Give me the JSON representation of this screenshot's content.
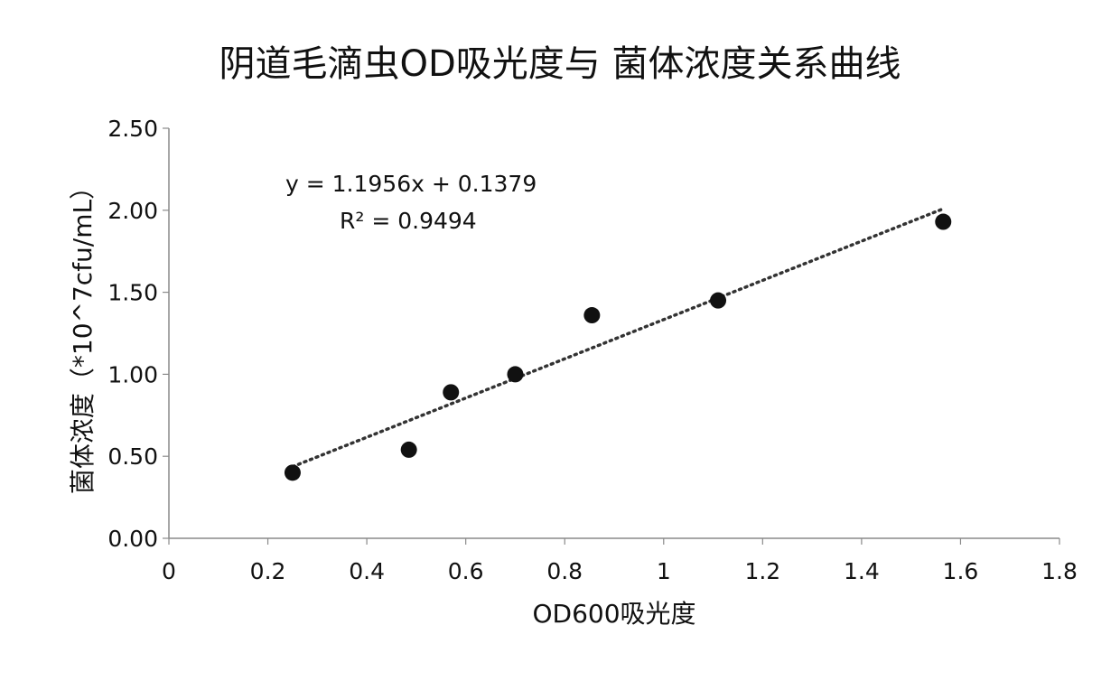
{
  "chart_data": {
    "type": "scatter",
    "title": "阴道毛滴虫OD吸光度与 菌体浓度关系曲线",
    "xlabel": "OD600吸光度",
    "ylabel": "菌体浓度（*10^7cfu/mL）",
    "xlim": [
      0,
      1.8
    ],
    "ylim": [
      0,
      2.5
    ],
    "x_ticks": [
      0,
      0.2,
      0.4,
      0.6,
      0.8,
      1,
      1.2,
      1.4,
      1.6,
      1.8
    ],
    "x_tick_labels": [
      "0",
      "0.2",
      "0.4",
      "0.6",
      "0.8",
      "1",
      "1.2",
      "1.4",
      "1.6",
      "1.8"
    ],
    "y_ticks": [
      0,
      0.5,
      1,
      1.5,
      2,
      2.5
    ],
    "y_tick_labels": [
      "0.00",
      "0.50",
      "1.00",
      "1.50",
      "2.00",
      "2.50"
    ],
    "grid": false,
    "legend": "none",
    "marker_color": "#111111",
    "trendline_color": "#333333",
    "series": [
      {
        "x": [
          0.25,
          0.485,
          0.57,
          0.7,
          0.855,
          1.11,
          1.565
        ],
        "y": [
          0.4,
          0.54,
          0.89,
          1.0,
          1.36,
          1.45,
          1.93
        ]
      }
    ],
    "trendline": {
      "type": "linear",
      "slope": 1.1956,
      "intercept": 0.1379,
      "x_range": [
        0.25,
        1.565
      ],
      "equation_text": "y = 1.1956x + 0.1379",
      "r2_text": "R² = 0.9494"
    }
  }
}
